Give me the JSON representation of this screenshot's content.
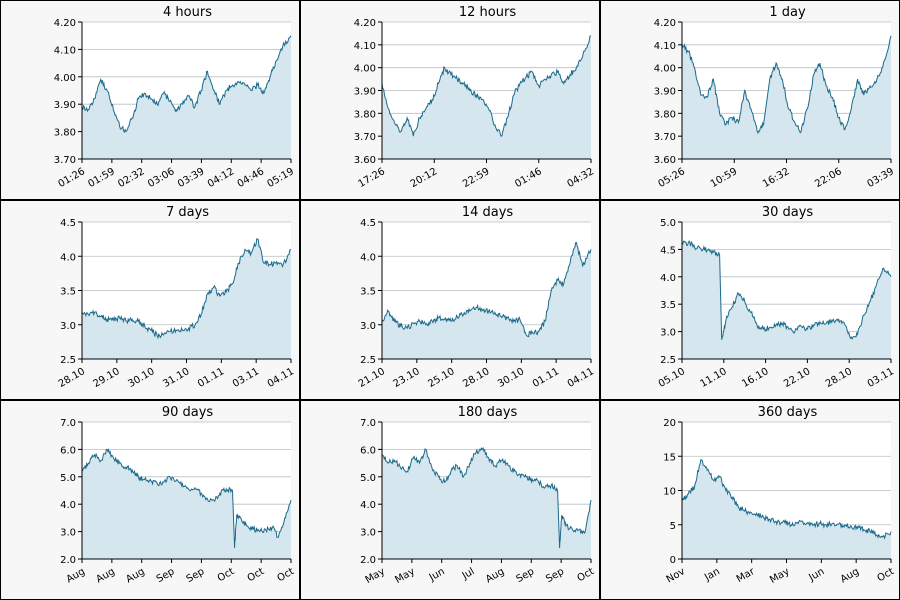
{
  "colors": {
    "background": "#f7f7f7",
    "border": "#000000",
    "line": "#1b6a8a",
    "fill": "#d6e6ee",
    "grid": "#b7bfc4"
  },
  "chart_data": [
    {
      "type": "area",
      "title": "4 hours",
      "ylim": [
        3.7,
        4.2
      ],
      "yticks": [
        "3.70",
        "3.80",
        "3.90",
        "4.00",
        "4.10",
        "4.20"
      ],
      "xtick_labels": [
        "01:26",
        "01:59",
        "02:32",
        "03:06",
        "03:39",
        "04:12",
        "04:46",
        "05:19"
      ],
      "grid": true,
      "x": [
        0,
        0.03,
        0.06,
        0.09,
        0.12,
        0.15,
        0.18,
        0.21,
        0.24,
        0.27,
        0.3,
        0.33,
        0.36,
        0.39,
        0.42,
        0.45,
        0.48,
        0.51,
        0.54,
        0.57,
        0.6,
        0.63,
        0.66,
        0.69,
        0.72,
        0.75,
        0.78,
        0.81,
        0.84,
        0.87,
        0.9,
        0.93,
        0.96,
        1.0
      ],
      "y": [
        3.89,
        3.88,
        3.92,
        3.99,
        3.95,
        3.88,
        3.82,
        3.8,
        3.85,
        3.92,
        3.94,
        3.92,
        3.9,
        3.94,
        3.91,
        3.88,
        3.9,
        3.93,
        3.89,
        3.95,
        4.02,
        3.95,
        3.9,
        3.95,
        3.97,
        3.98,
        3.97,
        3.95,
        3.97,
        3.94,
        4.0,
        4.06,
        4.11,
        4.15
      ]
    },
    {
      "type": "area",
      "title": "12 hours",
      "ylim": [
        3.6,
        4.2
      ],
      "yticks": [
        "3.60",
        "3.70",
        "3.80",
        "3.90",
        "4.00",
        "4.10",
        "4.20"
      ],
      "xtick_labels": [
        "17:26",
        "20:12",
        "22:59",
        "01:46",
        "04:32"
      ],
      "grid": true,
      "x": [
        0,
        0.03,
        0.06,
        0.09,
        0.12,
        0.15,
        0.18,
        0.21,
        0.24,
        0.27,
        0.3,
        0.33,
        0.36,
        0.39,
        0.42,
        0.45,
        0.48,
        0.51,
        0.54,
        0.57,
        0.6,
        0.63,
        0.66,
        0.69,
        0.72,
        0.75,
        0.78,
        0.81,
        0.84,
        0.87,
        0.9,
        0.93,
        0.96,
        1.0
      ],
      "y": [
        3.93,
        3.82,
        3.76,
        3.72,
        3.78,
        3.7,
        3.78,
        3.82,
        3.86,
        3.93,
        4.0,
        3.97,
        3.95,
        3.93,
        3.9,
        3.88,
        3.86,
        3.82,
        3.75,
        3.7,
        3.78,
        3.88,
        3.93,
        3.96,
        3.98,
        3.92,
        3.95,
        3.97,
        3.98,
        3.93,
        3.97,
        4.0,
        4.05,
        4.14
      ]
    },
    {
      "type": "area",
      "title": "1 day",
      "ylim": [
        3.6,
        4.2
      ],
      "yticks": [
        "3.60",
        "3.70",
        "3.80",
        "3.90",
        "4.00",
        "4.10",
        "4.20"
      ],
      "xtick_labels": [
        "05:26",
        "10:59",
        "16:32",
        "22:06",
        "03:39"
      ],
      "grid": true,
      "x": [
        0,
        0.03,
        0.06,
        0.09,
        0.12,
        0.15,
        0.18,
        0.21,
        0.24,
        0.27,
        0.3,
        0.33,
        0.36,
        0.39,
        0.42,
        0.45,
        0.48,
        0.51,
        0.54,
        0.57,
        0.6,
        0.63,
        0.66,
        0.69,
        0.72,
        0.75,
        0.78,
        0.81,
        0.84,
        0.87,
        0.9,
        0.93,
        0.96,
        1.0
      ],
      "y": [
        4.1,
        4.07,
        4.0,
        3.88,
        3.87,
        3.95,
        3.8,
        3.75,
        3.78,
        3.76,
        3.9,
        3.82,
        3.72,
        3.75,
        3.95,
        4.02,
        3.95,
        3.82,
        3.76,
        3.72,
        3.82,
        3.97,
        4.02,
        3.92,
        3.87,
        3.78,
        3.73,
        3.82,
        3.95,
        3.88,
        3.92,
        3.94,
        4.0,
        4.14
      ]
    },
    {
      "type": "area",
      "title": "7 days",
      "ylim": [
        2.5,
        4.5
      ],
      "yticks": [
        "2.5",
        "3.0",
        "3.5",
        "4.0",
        "4.5"
      ],
      "xtick_labels": [
        "28.10",
        "29.10",
        "30.10",
        "31.10",
        "01.11",
        "03.11",
        "04.11"
      ],
      "grid": true,
      "x": [
        0,
        0.03,
        0.06,
        0.09,
        0.12,
        0.15,
        0.18,
        0.21,
        0.24,
        0.27,
        0.3,
        0.33,
        0.36,
        0.39,
        0.42,
        0.45,
        0.48,
        0.51,
        0.54,
        0.57,
        0.6,
        0.63,
        0.66,
        0.69,
        0.72,
        0.75,
        0.78,
        0.81,
        0.84,
        0.87,
        0.9,
        0.93,
        0.96,
        1.0
      ],
      "y": [
        3.18,
        3.15,
        3.18,
        3.12,
        3.08,
        3.07,
        3.1,
        3.06,
        3.08,
        3.05,
        2.98,
        2.92,
        2.84,
        2.85,
        2.9,
        2.92,
        2.92,
        2.95,
        2.99,
        3.15,
        3.45,
        3.55,
        3.42,
        3.48,
        3.6,
        3.9,
        4.1,
        4.05,
        4.25,
        3.9,
        3.88,
        3.92,
        3.85,
        4.1
      ]
    },
    {
      "type": "area",
      "title": "14 days",
      "ylim": [
        2.5,
        4.5
      ],
      "yticks": [
        "2.5",
        "3.0",
        "3.5",
        "4.0",
        "4.5"
      ],
      "xtick_labels": [
        "21.10",
        "23.10",
        "25.10",
        "28.10",
        "30.10",
        "01.11",
        "04.11"
      ],
      "grid": true,
      "x": [
        0,
        0.03,
        0.06,
        0.09,
        0.12,
        0.15,
        0.18,
        0.21,
        0.24,
        0.27,
        0.3,
        0.33,
        0.36,
        0.39,
        0.42,
        0.45,
        0.48,
        0.51,
        0.54,
        0.57,
        0.6,
        0.63,
        0.66,
        0.69,
        0.72,
        0.75,
        0.78,
        0.81,
        0.84,
        0.87,
        0.9,
        0.93,
        0.96,
        1.0
      ],
      "y": [
        3.05,
        3.2,
        3.05,
        2.98,
        2.95,
        3.02,
        3.05,
        3.0,
        3.05,
        3.1,
        3.08,
        3.05,
        3.12,
        3.15,
        3.2,
        3.25,
        3.22,
        3.2,
        3.18,
        3.12,
        3.1,
        3.05,
        3.08,
        2.85,
        2.88,
        2.9,
        3.05,
        3.5,
        3.65,
        3.6,
        3.9,
        4.2,
        3.85,
        4.1
      ]
    },
    {
      "type": "area",
      "title": "30 days",
      "ylim": [
        2.5,
        5.0
      ],
      "yticks": [
        "2.5",
        "3.0",
        "3.5",
        "4.0",
        "4.5",
        "5.0"
      ],
      "xtick_labels": [
        "05.10",
        "11.10",
        "16.10",
        "22.10",
        "28.10",
        "03.11"
      ],
      "grid": true,
      "x": [
        0,
        0.03,
        0.06,
        0.09,
        0.12,
        0.15,
        0.18,
        0.19,
        0.21,
        0.24,
        0.27,
        0.3,
        0.33,
        0.36,
        0.39,
        0.42,
        0.45,
        0.48,
        0.51,
        0.54,
        0.57,
        0.6,
        0.63,
        0.66,
        0.69,
        0.72,
        0.75,
        0.78,
        0.81,
        0.84,
        0.87,
        0.9,
        0.93,
        0.96,
        1.0
      ],
      "y": [
        4.6,
        4.62,
        4.55,
        4.52,
        4.48,
        4.45,
        4.4,
        2.85,
        3.2,
        3.45,
        3.7,
        3.55,
        3.35,
        3.1,
        3.05,
        3.08,
        3.12,
        3.15,
        3.05,
        3.0,
        3.1,
        3.05,
        3.12,
        3.18,
        3.15,
        3.2,
        3.22,
        3.12,
        2.9,
        2.95,
        3.3,
        3.55,
        3.85,
        4.15,
        4.0
      ]
    },
    {
      "type": "area",
      "title": "90 days",
      "ylim": [
        2.0,
        7.0
      ],
      "yticks": [
        "2.0",
        "3.0",
        "4.0",
        "5.0",
        "6.0",
        "7.0"
      ],
      "xtick_labels": [
        "Aug",
        "Aug",
        "Aug",
        "Sep",
        "Sep",
        "Oct",
        "Oct",
        "Oct"
      ],
      "grid": true,
      "x": [
        0,
        0.03,
        0.06,
        0.09,
        0.12,
        0.15,
        0.18,
        0.21,
        0.24,
        0.27,
        0.3,
        0.33,
        0.36,
        0.39,
        0.42,
        0.45,
        0.48,
        0.51,
        0.54,
        0.57,
        0.6,
        0.63,
        0.66,
        0.69,
        0.72,
        0.73,
        0.74,
        0.76,
        0.79,
        0.82,
        0.85,
        0.88,
        0.91,
        0.94,
        0.97,
        1.0
      ],
      "y": [
        5.2,
        5.5,
        5.8,
        5.6,
        6.0,
        5.7,
        5.5,
        5.35,
        5.25,
        5.0,
        4.9,
        4.85,
        4.75,
        4.8,
        5.0,
        4.85,
        4.75,
        4.55,
        4.6,
        4.4,
        4.2,
        4.15,
        4.4,
        4.55,
        4.5,
        2.4,
        3.6,
        3.5,
        3.2,
        3.1,
        3.0,
        3.05,
        3.15,
        2.8,
        3.5,
        4.15
      ]
    },
    {
      "type": "area",
      "title": "180 days",
      "ylim": [
        2.0,
        7.0
      ],
      "yticks": [
        "2.0",
        "3.0",
        "4.0",
        "5.0",
        "6.0",
        "7.0"
      ],
      "xtick_labels": [
        "May",
        "May",
        "Jun",
        "Jul",
        "Aug",
        "Sep",
        "Sep",
        "Oct"
      ],
      "grid": true,
      "x": [
        0,
        0.03,
        0.06,
        0.09,
        0.12,
        0.15,
        0.18,
        0.21,
        0.24,
        0.27,
        0.3,
        0.33,
        0.36,
        0.39,
        0.42,
        0.45,
        0.48,
        0.51,
        0.54,
        0.57,
        0.6,
        0.63,
        0.66,
        0.69,
        0.72,
        0.75,
        0.78,
        0.81,
        0.84,
        0.85,
        0.86,
        0.88,
        0.91,
        0.94,
        0.97,
        1.0
      ],
      "y": [
        5.8,
        5.5,
        5.6,
        5.3,
        5.2,
        5.7,
        5.5,
        6.0,
        5.3,
        5.0,
        4.8,
        5.2,
        5.4,
        5.0,
        5.5,
        5.9,
        6.0,
        5.7,
        5.4,
        5.6,
        5.5,
        5.2,
        5.1,
        5.0,
        4.9,
        4.8,
        4.6,
        4.7,
        4.5,
        2.4,
        3.6,
        3.2,
        3.1,
        3.05,
        2.95,
        4.15
      ]
    },
    {
      "type": "area",
      "title": "360 days",
      "ylim": [
        0,
        20
      ],
      "yticks": [
        "0",
        "5",
        "10",
        "15",
        "20"
      ],
      "xtick_labels": [
        "Nov",
        "Jan",
        "Mar",
        "May",
        "Jun",
        "Aug",
        "Oct"
      ],
      "grid": true,
      "x": [
        0,
        0.03,
        0.06,
        0.09,
        0.12,
        0.15,
        0.18,
        0.21,
        0.24,
        0.27,
        0.3,
        0.33,
        0.36,
        0.39,
        0.42,
        0.45,
        0.48,
        0.51,
        0.54,
        0.57,
        0.6,
        0.63,
        0.66,
        0.69,
        0.72,
        0.75,
        0.78,
        0.81,
        0.84,
        0.87,
        0.9,
        0.93,
        0.96,
        1.0
      ],
      "y": [
        8.5,
        9.5,
        10.5,
        14.5,
        13.0,
        11.5,
        12.0,
        10.0,
        9.0,
        7.5,
        7.0,
        6.8,
        6.5,
        6.0,
        5.8,
        5.5,
        5.3,
        5.2,
        5.0,
        5.5,
        5.3,
        5.0,
        5.2,
        5.0,
        5.2,
        5.1,
        5.0,
        4.8,
        4.5,
        4.3,
        4.0,
        3.5,
        3.2,
        4.0
      ]
    }
  ]
}
